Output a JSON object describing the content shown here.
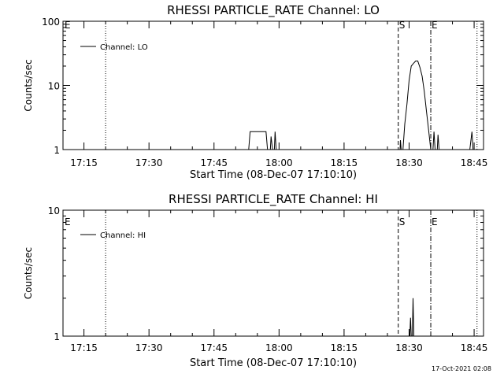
{
  "stamp": "17-Oct-2021 02:08",
  "x_tick_labels": [
    "17:15",
    "17:30",
    "17:45",
    "18:00",
    "18:15",
    "18:30",
    "18:45"
  ],
  "chart_data": [
    {
      "type": "line",
      "title": "RHESSI PARTICLE_RATE Channel: LO",
      "xlabel": "Start Time (08-Dec-07 17:10:10)",
      "ylabel": "Counts/sec",
      "yscale": "log",
      "x_range_minutes_after_17:10:10": [
        0,
        97
      ],
      "ylim": [
        1,
        100
      ],
      "y_tick_labels": [
        "1",
        "10",
        "100"
      ],
      "grid": false,
      "legend": {
        "placement": "top-left",
        "entries": [
          "Channel: LO"
        ]
      },
      "markers": [
        {
          "label": "E",
          "time": "17:10:10",
          "style": "none"
        },
        {
          "label": "",
          "time": "17:20:00",
          "style": "dotted"
        },
        {
          "label": "S",
          "time": "18:27:30",
          "style": "dashed"
        },
        {
          "label": "E",
          "time": "18:35:00",
          "style": "dash-dot"
        },
        {
          "label": "",
          "time": "18:45:40",
          "style": "dotted"
        }
      ],
      "series": [
        {
          "name": "Channel: LO",
          "points": [
            [
              "17:53:00",
              1
            ],
            [
              "17:53:20",
              1.9
            ],
            [
              "17:57:00",
              1.9
            ],
            [
              "17:57:20",
              1
            ],
            [
              "17:58:00",
              1
            ],
            [
              "17:58:10",
              1.6
            ],
            [
              "17:58:30",
              1
            ],
            [
              "17:58:55",
              1
            ],
            [
              "17:59:05",
              1.9
            ],
            [
              "17:59:20",
              1
            ],
            [
              "18:27:55",
              1
            ],
            [
              "18:28:00",
              1.4
            ],
            [
              "18:28:10",
              1
            ],
            [
              "18:28:35",
              1
            ],
            [
              "18:29:00",
              2.5
            ],
            [
              "18:29:30",
              5
            ],
            [
              "18:30:00",
              12
            ],
            [
              "18:30:30",
              20
            ],
            [
              "18:31:00",
              22
            ],
            [
              "18:31:30",
              24
            ],
            [
              "18:32:00",
              24
            ],
            [
              "18:32:30",
              19
            ],
            [
              "18:33:00",
              14
            ],
            [
              "18:33:30",
              8
            ],
            [
              "18:34:00",
              4
            ],
            [
              "18:34:30",
              2
            ],
            [
              "18:35:00",
              1
            ],
            [
              "18:35:30",
              1
            ],
            [
              "18:35:45",
              1.9
            ],
            [
              "18:36:00",
              1
            ],
            [
              "18:36:30",
              1
            ],
            [
              "18:36:40",
              1.7
            ],
            [
              "18:36:55",
              1
            ],
            [
              "18:44:00",
              1
            ],
            [
              "18:44:30",
              1.9
            ],
            [
              "18:44:45",
              1
            ]
          ]
        }
      ]
    },
    {
      "type": "line",
      "title": "RHESSI PARTICLE_RATE Channel: HI",
      "xlabel": "Start Time (08-Dec-07 17:10:10)",
      "ylabel": "Counts/sec",
      "yscale": "log",
      "x_range_minutes_after_17:10:10": [
        0,
        97
      ],
      "ylim": [
        1,
        10
      ],
      "y_tick_labels": [
        "1",
        "10"
      ],
      "grid": false,
      "legend": {
        "placement": "top-left",
        "entries": [
          "Channel: HI"
        ]
      },
      "markers": [
        {
          "label": "E",
          "time": "17:10:10",
          "style": "none"
        },
        {
          "label": "",
          "time": "17:20:00",
          "style": "dotted"
        },
        {
          "label": "S",
          "time": "18:27:30",
          "style": "dashed"
        },
        {
          "label": "E",
          "time": "18:35:00",
          "style": "dash-dot"
        },
        {
          "label": "",
          "time": "18:45:40",
          "style": "dotted"
        }
      ],
      "series": [
        {
          "name": "Channel: HI",
          "points": [
            [
              "18:30:10",
              1
            ],
            [
              "18:30:20",
              1.4
            ],
            [
              "18:30:30",
              1
            ],
            [
              "18:30:45",
              1
            ],
            [
              "18:30:55",
              2
            ],
            [
              "18:31:05",
              1
            ]
          ]
        }
      ]
    }
  ]
}
